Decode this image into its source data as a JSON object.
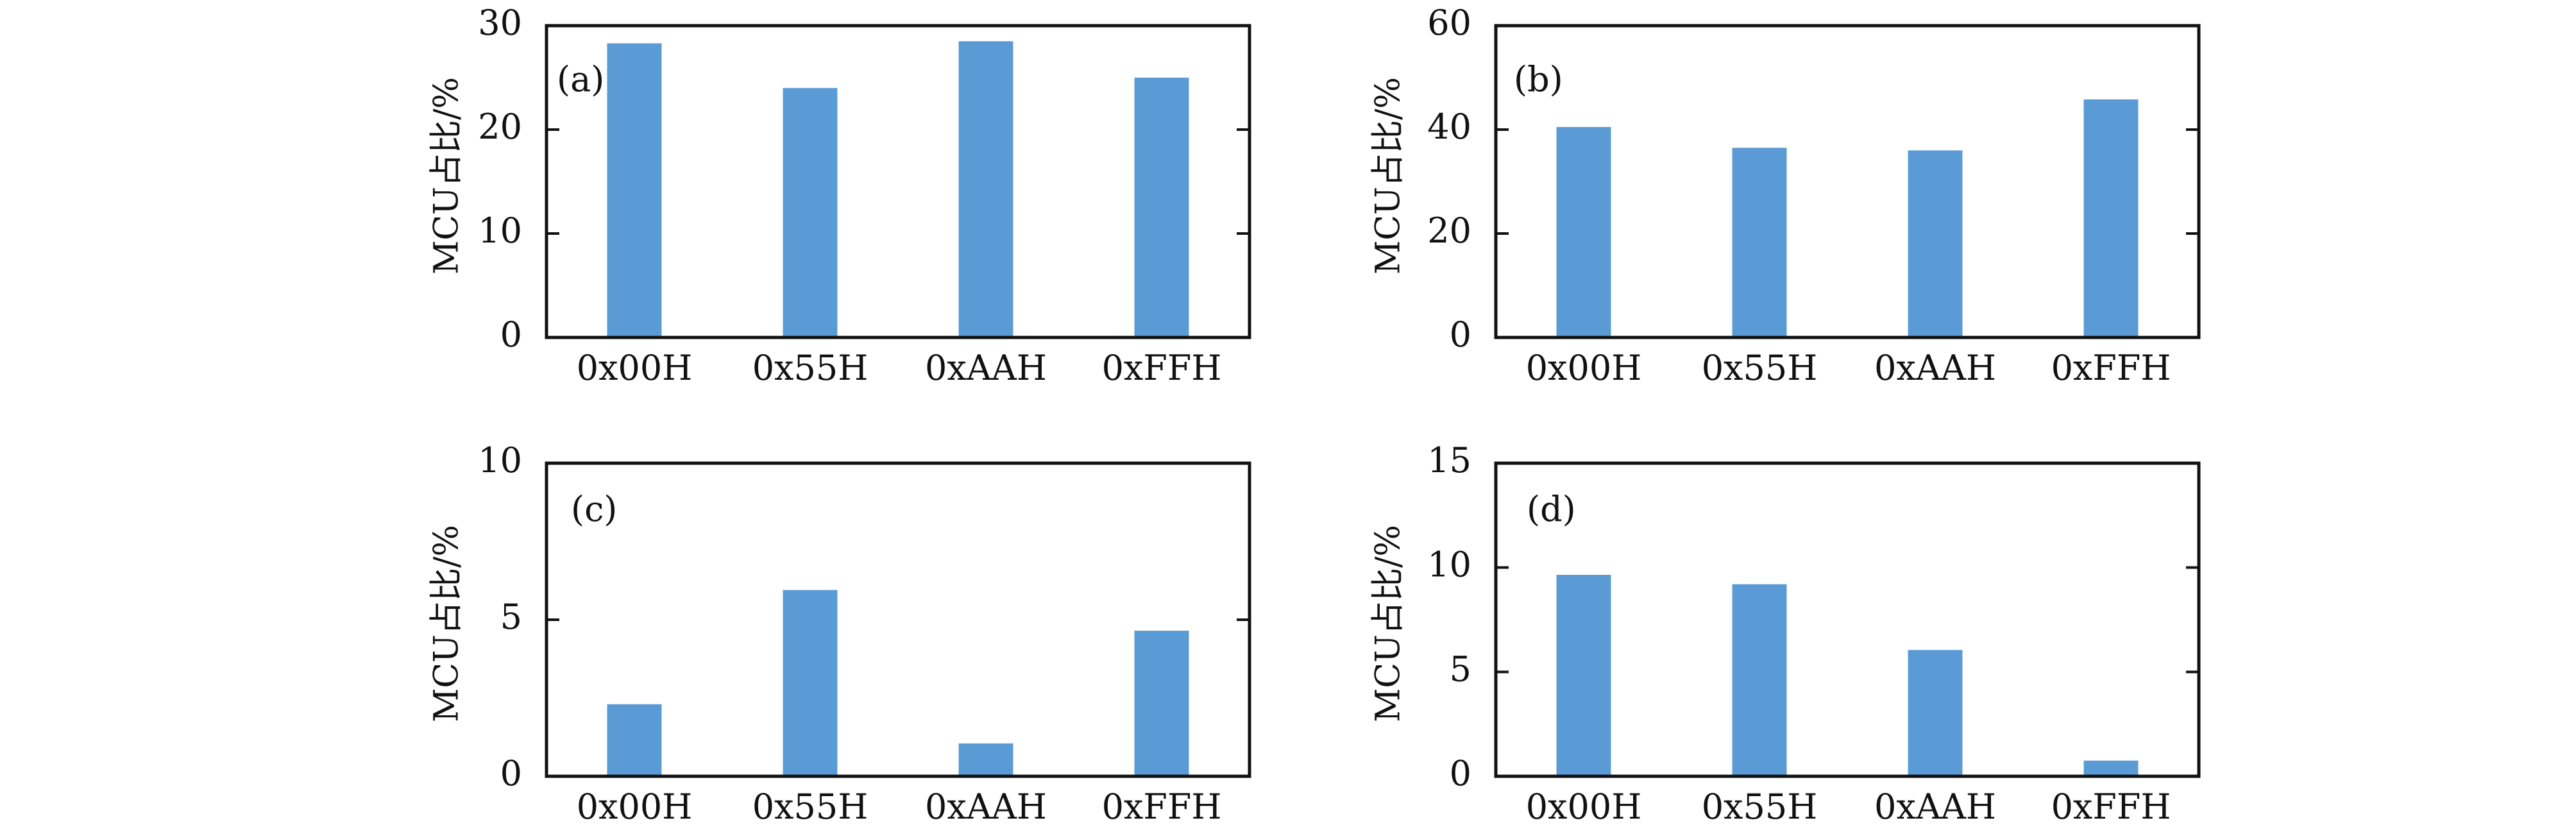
{
  "chart_data": [
    {
      "type": "bar",
      "panel_label": "(a)",
      "categories": [
        "0x00H",
        "0x55H",
        "0xAAH",
        "0xFFH"
      ],
      "values": [
        28.3,
        24.0,
        28.5,
        25.0
      ],
      "ylabel": "MCU占比/%",
      "ylim": [
        0,
        30
      ],
      "yticks": [
        0,
        10,
        20,
        30
      ],
      "color": "#5b9bd5"
    },
    {
      "type": "bar",
      "panel_label": "(b)",
      "categories": [
        "0x00H",
        "0x55H",
        "0xAAH",
        "0xFFH"
      ],
      "values": [
        40.5,
        36.5,
        36.0,
        45.8
      ],
      "ylabel": "MCU占比/%",
      "ylim": [
        0,
        60
      ],
      "yticks": [
        0,
        20,
        40,
        60
      ],
      "color": "#5b9bd5"
    },
    {
      "type": "bar",
      "panel_label": "(c)",
      "categories": [
        "0x00H",
        "0x55H",
        "0xAAH",
        "0xFFH"
      ],
      "values": [
        2.3,
        5.95,
        1.05,
        4.65
      ],
      "ylabel": "MCU占比/%",
      "ylim": [
        0,
        10
      ],
      "yticks": [
        0,
        5,
        10
      ],
      "color": "#5b9bd5"
    },
    {
      "type": "bar",
      "panel_label": "(d)",
      "categories": [
        "0x00H",
        "0x55H",
        "0xAAH",
        "0xFFH"
      ],
      "values": [
        9.65,
        9.2,
        6.05,
        0.75
      ],
      "ylabel": "MCU占比/%",
      "ylim": [
        0,
        15
      ],
      "yticks": [
        0,
        5,
        10,
        15
      ],
      "color": "#5b9bd5"
    }
  ]
}
